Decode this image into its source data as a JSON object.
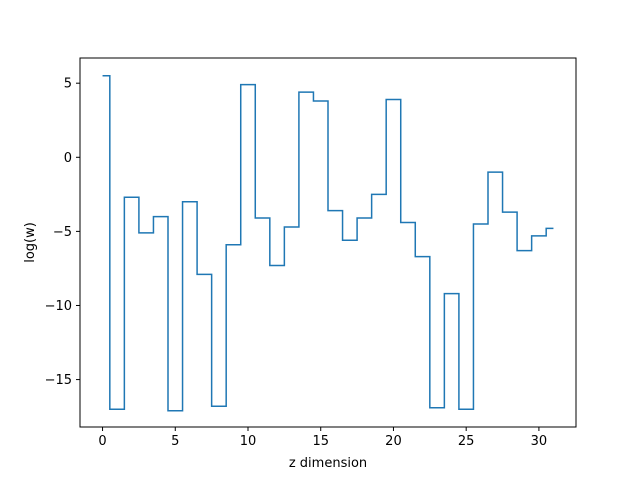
{
  "chart_data": {
    "type": "line",
    "drawstyle": "steps-mid",
    "xlabel": "z dimension",
    "ylabel": "log(w)",
    "xlim": [
      -1.55,
      32.55
    ],
    "ylim": [
      -18.2,
      6.7
    ],
    "xticks": [
      0,
      5,
      10,
      15,
      20,
      25,
      30
    ],
    "yticks": [
      -15,
      -10,
      -5,
      0,
      5
    ],
    "ytick_labels": [
      "−15",
      "−10",
      "−5",
      "0",
      "5"
    ],
    "grid": false,
    "line_color": "#1f77b4",
    "x": [
      0,
      1,
      2,
      3,
      4,
      5,
      6,
      7,
      8,
      9,
      10,
      11,
      12,
      13,
      14,
      15,
      16,
      17,
      18,
      19,
      20,
      21,
      22,
      23,
      24,
      25,
      26,
      27,
      28,
      29,
      30,
      31
    ],
    "y": [
      5.5,
      -17.0,
      -2.7,
      -5.1,
      -4.0,
      -17.1,
      -3.0,
      -7.9,
      -16.8,
      -5.9,
      4.9,
      -4.1,
      -7.3,
      -4.7,
      4.4,
      3.8,
      -3.6,
      -5.6,
      -4.1,
      -2.5,
      3.9,
      -4.4,
      -6.7,
      -16.9,
      -9.2,
      -17.0,
      -4.5,
      -1.0,
      -3.7,
      -6.3,
      -5.3,
      -4.8
    ]
  }
}
